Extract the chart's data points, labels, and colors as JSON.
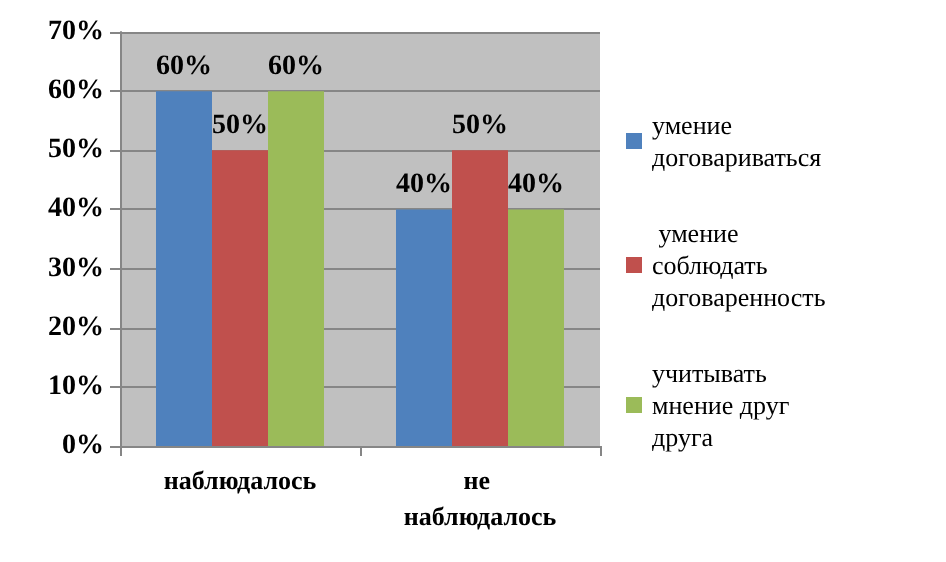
{
  "chart_data": {
    "type": "bar",
    "categories": [
      "наблюдалось",
      "не наблюдалось"
    ],
    "series": [
      {
        "name": "умение договариваться",
        "color": "#4f81bd",
        "values": [
          60,
          40
        ],
        "value_labels": [
          "60%",
          "40%"
        ]
      },
      {
        "name": " умение соблюдать договаренность",
        "color": "#c0504d",
        "values": [
          50,
          50
        ],
        "value_labels": [
          "50%",
          "50%"
        ]
      },
      {
        "name": "учитывать мнение друг друга",
        "color": "#9bbb59",
        "values": [
          60,
          40
        ],
        "value_labels": [
          "60%",
          "40%"
        ]
      }
    ],
    "ylim": [
      0,
      70
    ],
    "yticks": [
      {
        "value": 0,
        "label": "0%"
      },
      {
        "value": 10,
        "label": "10%"
      },
      {
        "value": 20,
        "label": "20%"
      },
      {
        "value": 30,
        "label": "30%"
      },
      {
        "value": 40,
        "label": "40%"
      },
      {
        "value": 50,
        "label": "50%"
      },
      {
        "value": 60,
        "label": "60%"
      },
      {
        "value": 70,
        "label": "70%"
      }
    ],
    "grid": true,
    "legend": "right"
  }
}
